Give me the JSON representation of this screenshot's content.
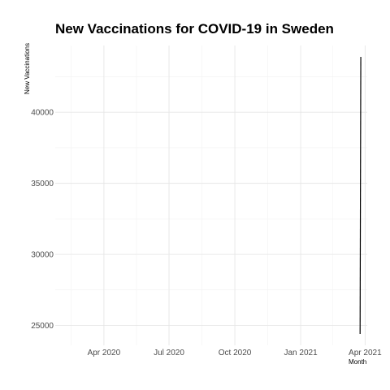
{
  "chart_data": {
    "type": "line",
    "title": "New Vaccinations for COVID-19 in Sweden",
    "xlabel": "Month",
    "ylabel": "New Vaccinations",
    "x_ticks": [
      "Apr 2020",
      "Jul 2020",
      "Oct 2020",
      "Jan 2021",
      "Apr 2021"
    ],
    "y_ticks": [
      25000,
      30000,
      35000,
      40000
    ],
    "xlim": [
      "2020-01-24",
      "2021-04-04"
    ],
    "ylim": [
      23600,
      44700
    ],
    "grid": true,
    "line_color": "#000000",
    "series": [
      {
        "x": [
          "2021-03-25",
          "2021-03-26"
        ],
        "y": [
          24400,
          43900
        ]
      }
    ]
  }
}
